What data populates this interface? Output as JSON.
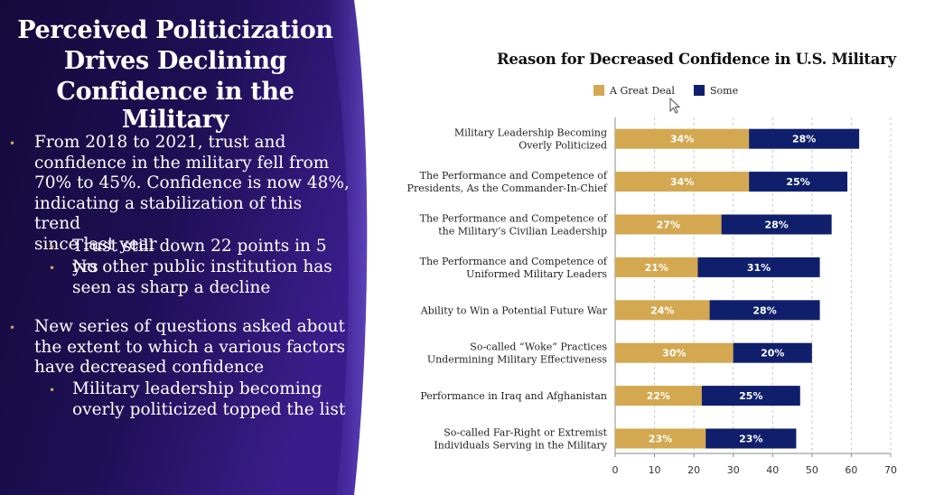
{
  "slide": {
    "title_lines": [
      "Perceived Politicization",
      "Drives Declining",
      "Confidence in the Military"
    ],
    "bullets": [
      {
        "level": 1,
        "lines": [
          "From 2018 to 2021, trust and",
          "confidence in the military fell from",
          "70% to 45%. Confidence is now 48%,",
          "indicating a stabilization of this trend",
          "since last year"
        ]
      },
      {
        "level": 2,
        "lines": [
          "Trust still down 22 points in 5 yrs"
        ]
      },
      {
        "level": 2,
        "lines": [
          "No other public institution has",
          "seen as sharp a decline"
        ]
      },
      {
        "level": 1,
        "lines": [
          "New series of questions asked about",
          "the extent to which a various factors",
          "have decreased confidence"
        ]
      },
      {
        "level": 2,
        "lines": [
          "Military leadership becoming",
          "overly politicized topped the list"
        ]
      }
    ]
  },
  "colors": {
    "great_deal": "#d4a850",
    "some": "#0f1f6b",
    "panel_dark": "#160c40",
    "panel_mid": "#2a1670"
  },
  "chart_data": {
    "type": "bar",
    "orientation": "horizontal",
    "stacked": true,
    "title": "Reason for Decreased Confidence in U.S. Military",
    "legend_position": "top",
    "grid": "vertical dashed",
    "categories": [
      [
        "Military Leadership Becoming",
        "Overly Politicized"
      ],
      [
        "The Performance and Competence of",
        "Presidents, As the Commander-In-Chief"
      ],
      [
        "The Performance and Competence of",
        "the Military’s Civilian Leadership"
      ],
      [
        "The Performance and Competence of",
        "Uniformed Military Leaders"
      ],
      [
        "Ability to Win a Potential Future War"
      ],
      [
        "So-called “Woke” Practices",
        "Undermining Military Effectiveness"
      ],
      [
        "Performance in Iraq and Afghanistan"
      ],
      [
        "So-called Far-Right or Extremist",
        "Individuals Serving in the Military"
      ]
    ],
    "series": [
      {
        "name": "A Great Deal",
        "values": [
          34,
          34,
          27,
          21,
          24,
          30,
          22,
          23
        ],
        "labels": [
          "34%",
          "34%",
          "27%",
          "21%",
          "24%",
          "30%",
          "22%",
          "23%"
        ]
      },
      {
        "name": "Some",
        "values": [
          28,
          25,
          28,
          31,
          28,
          20,
          25,
          23
        ],
        "labels": [
          "28%",
          "25%",
          "28%",
          "31%",
          "28%",
          "20%",
          "25%",
          "23%"
        ]
      }
    ],
    "xlim": [
      0,
      70
    ],
    "xticks": [
      0,
      10,
      20,
      30,
      40,
      50,
      60,
      70
    ]
  }
}
